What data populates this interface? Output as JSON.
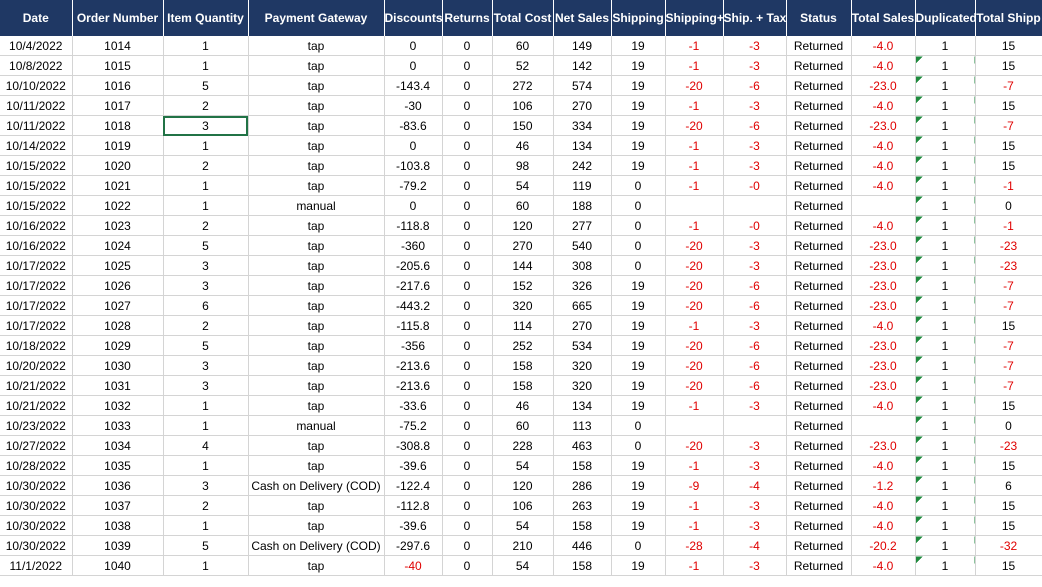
{
  "table": {
    "headers": [
      "Date",
      "Order Number",
      "Item Quantity",
      "Payment Gateway",
      "Discounts",
      "Returns",
      "Total Cost",
      "Net Sales",
      "Shipping",
      "Shipping+",
      "Ship. + Tax",
      "Status",
      "Total Sales",
      "Duplicated",
      "Total Shipp"
    ],
    "rows": [
      [
        "10/4/2022",
        "1014",
        "1",
        "tap",
        "0",
        "0",
        "60",
        "149",
        "19",
        "-1",
        "-3",
        "Returned",
        "-4.0",
        "1",
        "15"
      ],
      [
        "10/8/2022",
        "1015",
        "1",
        "tap",
        "0",
        "0",
        "52",
        "142",
        "19",
        "-1",
        "-3",
        "Returned",
        "-4.0",
        "1",
        "15"
      ],
      [
        "10/10/2022",
        "1016",
        "5",
        "tap",
        "-143.4",
        "0",
        "272",
        "574",
        "19",
        "-20",
        "-6",
        "Returned",
        "-23.0",
        "1",
        "-7"
      ],
      [
        "10/11/2022",
        "1017",
        "2",
        "tap",
        "-30",
        "0",
        "106",
        "270",
        "19",
        "-1",
        "-3",
        "Returned",
        "-4.0",
        "1",
        "15"
      ],
      [
        "10/11/2022",
        "1018",
        "3",
        "tap",
        "-83.6",
        "0",
        "150",
        "334",
        "19",
        "-20",
        "-6",
        "Returned",
        "-23.0",
        "1",
        "-7"
      ],
      [
        "10/14/2022",
        "1019",
        "1",
        "tap",
        "0",
        "0",
        "46",
        "134",
        "19",
        "-1",
        "-3",
        "Returned",
        "-4.0",
        "1",
        "15"
      ],
      [
        "10/15/2022",
        "1020",
        "2",
        "tap",
        "-103.8",
        "0",
        "98",
        "242",
        "19",
        "-1",
        "-3",
        "Returned",
        "-4.0",
        "1",
        "15"
      ],
      [
        "10/15/2022",
        "1021",
        "1",
        "tap",
        "-79.2",
        "0",
        "54",
        "119",
        "0",
        "-1",
        "-0",
        "Returned",
        "-4.0",
        "1",
        "-1"
      ],
      [
        "10/15/2022",
        "1022",
        "1",
        "manual",
        "0",
        "0",
        "60",
        "188",
        "0",
        null,
        null,
        "Returned",
        null,
        "1",
        "0"
      ],
      [
        "10/16/2022",
        "1023",
        "2",
        "tap",
        "-118.8",
        "0",
        "120",
        "277",
        "0",
        "-1",
        "-0",
        "Returned",
        "-4.0",
        "1",
        "-1"
      ],
      [
        "10/16/2022",
        "1024",
        "5",
        "tap",
        "-360",
        "0",
        "270",
        "540",
        "0",
        "-20",
        "-3",
        "Returned",
        "-23.0",
        "1",
        "-23"
      ],
      [
        "10/17/2022",
        "1025",
        "3",
        "tap",
        "-205.6",
        "0",
        "144",
        "308",
        "0",
        "-20",
        "-3",
        "Returned",
        "-23.0",
        "1",
        "-23"
      ],
      [
        "10/17/2022",
        "1026",
        "3",
        "tap",
        "-217.6",
        "0",
        "152",
        "326",
        "19",
        "-20",
        "-6",
        "Returned",
        "-23.0",
        "1",
        "-7"
      ],
      [
        "10/17/2022",
        "1027",
        "6",
        "tap",
        "-443.2",
        "0",
        "320",
        "665",
        "19",
        "-20",
        "-6",
        "Returned",
        "-23.0",
        "1",
        "-7"
      ],
      [
        "10/17/2022",
        "1028",
        "2",
        "tap",
        "-115.8",
        "0",
        "114",
        "270",
        "19",
        "-1",
        "-3",
        "Returned",
        "-4.0",
        "1",
        "15"
      ],
      [
        "10/18/2022",
        "1029",
        "5",
        "tap",
        "-356",
        "0",
        "252",
        "534",
        "19",
        "-20",
        "-6",
        "Returned",
        "-23.0",
        "1",
        "-7"
      ],
      [
        "10/20/2022",
        "1030",
        "3",
        "tap",
        "-213.6",
        "0",
        "158",
        "320",
        "19",
        "-20",
        "-6",
        "Returned",
        "-23.0",
        "1",
        "-7"
      ],
      [
        "10/21/2022",
        "1031",
        "3",
        "tap",
        "-213.6",
        "0",
        "158",
        "320",
        "19",
        "-20",
        "-6",
        "Returned",
        "-23.0",
        "1",
        "-7"
      ],
      [
        "10/21/2022",
        "1032",
        "1",
        "tap",
        "-33.6",
        "0",
        "46",
        "134",
        "19",
        "-1",
        "-3",
        "Returned",
        "-4.0",
        "1",
        "15"
      ],
      [
        "10/23/2022",
        "1033",
        "1",
        "manual",
        "-75.2",
        "0",
        "60",
        "113",
        "0",
        null,
        null,
        "Returned",
        null,
        "1",
        "0"
      ],
      [
        "10/27/2022",
        "1034",
        "4",
        "tap",
        "-308.8",
        "0",
        "228",
        "463",
        "0",
        "-20",
        "-3",
        "Returned",
        "-23.0",
        "1",
        "-23"
      ],
      [
        "10/28/2022",
        "1035",
        "1",
        "tap",
        "-39.6",
        "0",
        "54",
        "158",
        "19",
        "-1",
        "-3",
        "Returned",
        "-4.0",
        "1",
        "15"
      ],
      [
        "10/30/2022",
        "1036",
        "3",
        "Cash on Delivery (COD)",
        "-122.4",
        "0",
        "120",
        "286",
        "19",
        "-9",
        "-4",
        "Returned",
        "-1.2",
        "1",
        "6"
      ],
      [
        "10/30/2022",
        "1037",
        "2",
        "tap",
        "-112.8",
        "0",
        "106",
        "263",
        "19",
        "-1",
        "-3",
        "Returned",
        "-4.0",
        "1",
        "15"
      ],
      [
        "10/30/2022",
        "1038",
        "1",
        "tap",
        "-39.6",
        "0",
        "54",
        "158",
        "19",
        "-1",
        "-3",
        "Returned",
        "-4.0",
        "1",
        "15"
      ],
      [
        "10/30/2022",
        "1039",
        "5",
        "Cash on Delivery (COD)",
        "-297.6",
        "0",
        "210",
        "446",
        "0",
        "-28",
        "-4",
        "Returned",
        "-20.2",
        "1",
        "-32"
      ],
      [
        "11/1/2022",
        "1040",
        "1",
        "tap",
        "-40",
        "0",
        "54",
        "158",
        "19",
        "-1",
        "-3",
        "Returned",
        "-4.0",
        "1",
        "15"
      ]
    ]
  }
}
